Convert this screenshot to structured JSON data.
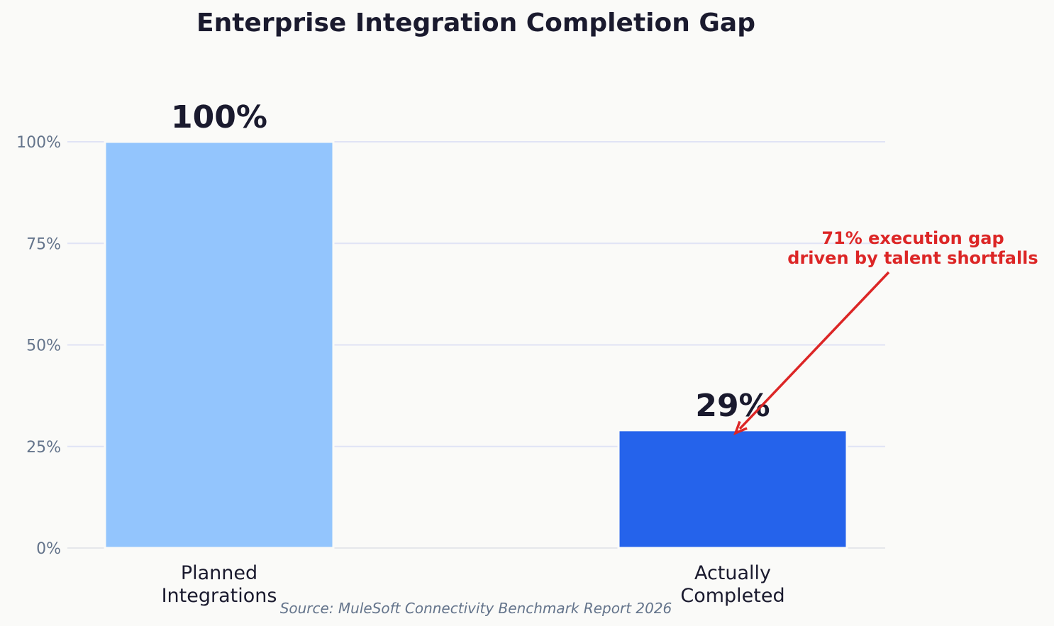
{
  "chart_data": {
    "type": "bar",
    "title": "Enterprise Integration Completion Gap",
    "categories": [
      [
        "Planned",
        "Integrations"
      ],
      [
        "Actually",
        "Completed"
      ]
    ],
    "values": [
      100,
      29
    ],
    "data_labels": [
      "100%",
      "29%"
    ],
    "bar_colors": [
      "#93c5fd",
      "#2563eb"
    ],
    "ylim": [
      0,
      100
    ],
    "yticks": [
      0,
      25,
      50,
      75,
      100
    ],
    "ytick_labels": [
      "0%",
      "25%",
      "50%",
      "75%",
      "100%"
    ],
    "grid": true,
    "annotation": {
      "lines": [
        "71% execution gap",
        "driven by talent shortfalls"
      ],
      "color": "#dc2626",
      "points_to_category": 1,
      "points_to_value": 29
    },
    "source": "Source: MuleSoft Connectivity Benchmark Report 2026"
  }
}
